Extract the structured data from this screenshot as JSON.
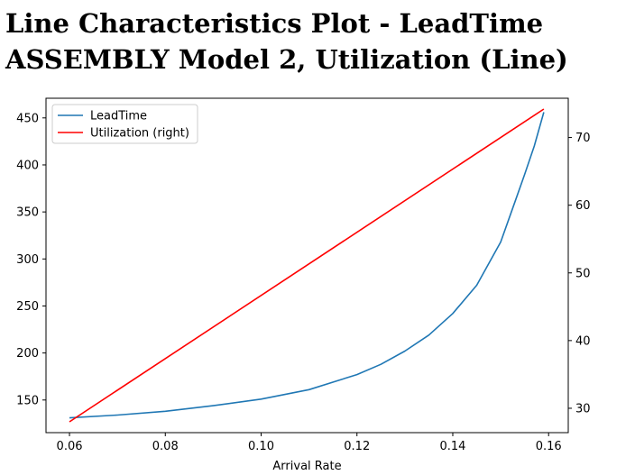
{
  "page": {
    "title": "Line Characteristics Plot - LeadTime ASSEMBLY Model 2, Utilization (Line)"
  },
  "chart_data": {
    "type": "line",
    "title": "Line Characteristics Plot - LeadTime ASSEMBLY Model 2, Utilization (Line)",
    "xlabel": "Arrival Rate",
    "ylabel": "",
    "ylabel_right": "",
    "xlim": [
      0.0551,
      0.1641
    ],
    "ylim_left": [
      115.3,
      470.9
    ],
    "ylim_right": [
      26.4,
      75.8
    ],
    "x_ticks": [
      0.06,
      0.08,
      0.1,
      0.12,
      0.14,
      0.16
    ],
    "x_tick_labels": [
      "0.06",
      "0.08",
      "0.10",
      "0.12",
      "0.14",
      "0.16"
    ],
    "y_left_ticks": [
      150,
      200,
      250,
      300,
      350,
      400,
      450
    ],
    "y_right_ticks": [
      30,
      40,
      50,
      60,
      70
    ],
    "grid": false,
    "legend_position": "upper left",
    "series": [
      {
        "name": "LeadTime",
        "axis": "left",
        "color": "#1f77b4",
        "x": [
          0.06,
          0.07,
          0.08,
          0.09,
          0.1,
          0.11,
          0.12,
          0.125,
          0.13,
          0.135,
          0.14,
          0.145,
          0.15,
          0.153,
          0.155,
          0.157,
          0.159
        ],
        "values": [
          131,
          134,
          138,
          144,
          151,
          161,
          177,
          188,
          202,
          219,
          242,
          272,
          318,
          361,
          390,
          420,
          456
        ]
      },
      {
        "name": "Utilization (right)",
        "axis": "right",
        "color": "#ff0000",
        "x": [
          0.06,
          0.159
        ],
        "values": [
          28.0,
          74.2
        ]
      }
    ]
  }
}
